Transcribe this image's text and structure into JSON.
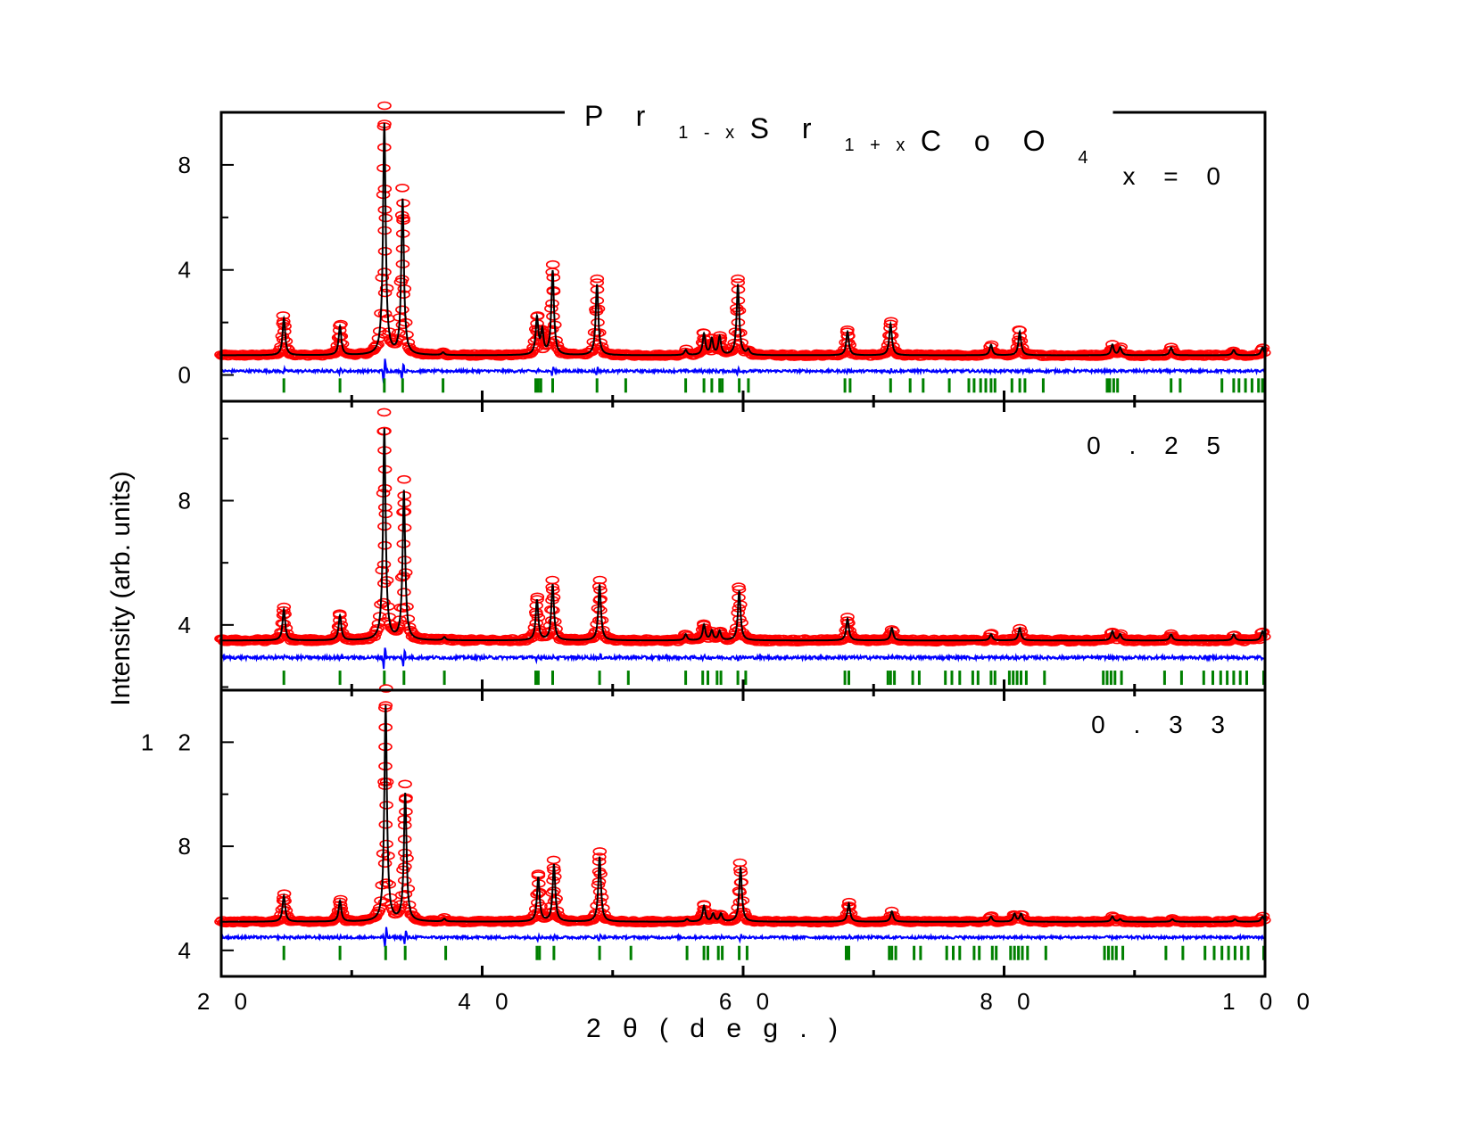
{
  "chart_data": {
    "type": "line",
    "title": {
      "parts": [
        {
          "text": "P r",
          "sub": false
        },
        {
          "text": "1 - x",
          "sub": true
        },
        {
          "text": "S r",
          "sub": false
        },
        {
          "text": "1 + x",
          "sub": true
        },
        {
          "text": "C o O",
          "sub": false
        },
        {
          "text": "4",
          "sub": true
        }
      ]
    },
    "xlabel": "2 θ  ( d e g . )",
    "ylabel": "Intensity (arb. units)",
    "xlim": [
      20,
      100
    ],
    "xticks": [
      20,
      40,
      60,
      80,
      100
    ],
    "xtick_labels": [
      "2 0",
      "4 0",
      "6 0",
      "8 0",
      "1 0 0"
    ],
    "series_legend": {
      "observed": "red open circles",
      "calculated": "black line",
      "difference": "blue line",
      "bragg_positions": "green ticks"
    },
    "colors": {
      "observed": "#ff0000",
      "calculated": "#000000",
      "difference": "#0000ff",
      "bragg": "#008000"
    },
    "panels": [
      {
        "label": "x  =  0",
        "ylim": [
          -1,
          10
        ],
        "yticks": [
          0,
          4,
          8
        ],
        "ytick_labels": [
          "0",
          "4",
          "8"
        ],
        "baseline": 0.75,
        "diff_level": 0.15,
        "bragg_level": -0.4,
        "peaks": [
          {
            "x": 24.8,
            "h": 1.4
          },
          {
            "x": 29.1,
            "h": 1.1
          },
          {
            "x": 32.5,
            "h": 8.8
          },
          {
            "x": 33.9,
            "h": 5.9
          },
          {
            "x": 37.0,
            "h": 0.1
          },
          {
            "x": 44.2,
            "h": 1.4
          },
          {
            "x": 44.6,
            "h": 0.9
          },
          {
            "x": 45.4,
            "h": 3.2
          },
          {
            "x": 48.8,
            "h": 2.7
          },
          {
            "x": 55.6,
            "h": 0.2
          },
          {
            "x": 57.0,
            "h": 0.8
          },
          {
            "x": 57.6,
            "h": 0.6
          },
          {
            "x": 58.2,
            "h": 0.7
          },
          {
            "x": 59.6,
            "h": 2.7
          },
          {
            "x": 60.4,
            "h": 0.2
          },
          {
            "x": 68.0,
            "h": 0.9
          },
          {
            "x": 71.3,
            "h": 1.2
          },
          {
            "x": 79.0,
            "h": 0.4
          },
          {
            "x": 81.2,
            "h": 0.9
          },
          {
            "x": 88.3,
            "h": 0.4
          },
          {
            "x": 88.9,
            "h": 0.3
          },
          {
            "x": 92.8,
            "h": 0.3
          },
          {
            "x": 97.6,
            "h": 0.2
          },
          {
            "x": 99.8,
            "h": 0.3
          }
        ],
        "bragg": [
          24.8,
          29.1,
          32.5,
          33.9,
          37.0,
          44.1,
          44.3,
          44.5,
          45.4,
          48.8,
          51.0,
          55.6,
          57.0,
          57.6,
          58.2,
          58.4,
          59.7,
          60.4,
          67.8,
          68.2,
          71.3,
          72.8,
          73.8,
          75.8,
          77.3,
          77.7,
          78.2,
          78.6,
          79.0,
          79.3,
          80.6,
          81.2,
          81.6,
          83.0,
          87.9,
          88.1,
          88.4,
          88.7,
          92.8,
          93.5,
          96.7,
          97.6,
          98.0,
          98.5,
          99.0,
          99.5,
          99.8
        ]
      },
      {
        "label": "0 . 2 5",
        "ylim": [
          1.9,
          11.2
        ],
        "yticks": [
          4,
          8
        ],
        "ytick_labels": [
          "4",
          "8"
        ],
        "baseline": 3.5,
        "diff_level": 2.95,
        "bragg_level": 2.3,
        "peaks": [
          {
            "x": 24.8,
            "h": 1.0
          },
          {
            "x": 29.1,
            "h": 0.8
          },
          {
            "x": 32.5,
            "h": 6.8
          },
          {
            "x": 34.0,
            "h": 4.8
          },
          {
            "x": 37.1,
            "h": 0.1
          },
          {
            "x": 44.2,
            "h": 1.3
          },
          {
            "x": 45.4,
            "h": 1.8
          },
          {
            "x": 49.0,
            "h": 1.8
          },
          {
            "x": 55.6,
            "h": 0.2
          },
          {
            "x": 57.0,
            "h": 0.5
          },
          {
            "x": 57.6,
            "h": 0.3
          },
          {
            "x": 58.2,
            "h": 0.3
          },
          {
            "x": 59.7,
            "h": 1.6
          },
          {
            "x": 68.0,
            "h": 0.7
          },
          {
            "x": 71.4,
            "h": 0.4
          },
          {
            "x": 79.0,
            "h": 0.2
          },
          {
            "x": 81.2,
            "h": 0.4
          },
          {
            "x": 88.3,
            "h": 0.3
          },
          {
            "x": 88.9,
            "h": 0.2
          },
          {
            "x": 92.8,
            "h": 0.2
          },
          {
            "x": 97.6,
            "h": 0.2
          },
          {
            "x": 99.8,
            "h": 0.3
          }
        ],
        "bragg": [
          24.8,
          29.1,
          32.5,
          34.0,
          37.1,
          44.1,
          44.3,
          45.4,
          49.0,
          51.2,
          55.6,
          56.9,
          57.3,
          58.0,
          58.3,
          59.6,
          60.2,
          67.8,
          68.1,
          71.1,
          71.3,
          71.6,
          73.0,
          73.5,
          75.5,
          76.0,
          76.6,
          77.6,
          78.0,
          79.0,
          79.3,
          80.4,
          80.7,
          81.0,
          81.3,
          81.7,
          83.1,
          87.6,
          87.9,
          88.2,
          88.5,
          89.0,
          92.3,
          93.6,
          95.3,
          96.0,
          96.6,
          97.1,
          97.6,
          98.1,
          98.6,
          99.9
        ]
      },
      {
        "label": "0 . 3 3",
        "ylim": [
          3.0,
          14.0
        ],
        "yticks": [
          4,
          8,
          12
        ],
        "ytick_labels": [
          "4",
          "8",
          "1 2"
        ],
        "baseline": 5.1,
        "diff_level": 4.5,
        "bragg_level": 3.9,
        "peaks": [
          {
            "x": 24.8,
            "h": 1.0
          },
          {
            "x": 29.1,
            "h": 0.8
          },
          {
            "x": 32.6,
            "h": 8.3
          },
          {
            "x": 34.1,
            "h": 4.9
          },
          {
            "x": 37.1,
            "h": 0.1
          },
          {
            "x": 44.3,
            "h": 1.7
          },
          {
            "x": 45.5,
            "h": 2.2
          },
          {
            "x": 49.0,
            "h": 2.5
          },
          {
            "x": 55.7,
            "h": 0.1
          },
          {
            "x": 57.0,
            "h": 0.6
          },
          {
            "x": 57.7,
            "h": 0.3
          },
          {
            "x": 58.3,
            "h": 0.3
          },
          {
            "x": 59.8,
            "h": 2.1
          },
          {
            "x": 68.1,
            "h": 0.7
          },
          {
            "x": 71.4,
            "h": 0.4
          },
          {
            "x": 79.0,
            "h": 0.2
          },
          {
            "x": 80.8,
            "h": 0.3
          },
          {
            "x": 81.3,
            "h": 0.3
          },
          {
            "x": 88.3,
            "h": 0.2
          },
          {
            "x": 88.9,
            "h": 0.1
          },
          {
            "x": 92.9,
            "h": 0.1
          },
          {
            "x": 97.7,
            "h": 0.1
          },
          {
            "x": 99.8,
            "h": 0.2
          }
        ],
        "bragg": [
          24.8,
          29.1,
          32.6,
          34.1,
          37.2,
          44.2,
          44.4,
          45.5,
          49.0,
          51.4,
          55.7,
          57.0,
          57.3,
          58.1,
          58.4,
          59.7,
          60.3,
          67.9,
          68.1,
          71.2,
          71.4,
          71.7,
          73.1,
          73.6,
          75.6,
          76.1,
          76.6,
          77.7,
          78.1,
          79.1,
          79.4,
          80.5,
          80.8,
          81.1,
          81.4,
          81.8,
          83.2,
          87.7,
          88.0,
          88.3,
          88.6,
          89.1,
          92.4,
          93.7,
          95.4,
          96.1,
          96.7,
          97.2,
          97.7,
          98.2,
          98.7,
          99.9
        ]
      }
    ]
  }
}
